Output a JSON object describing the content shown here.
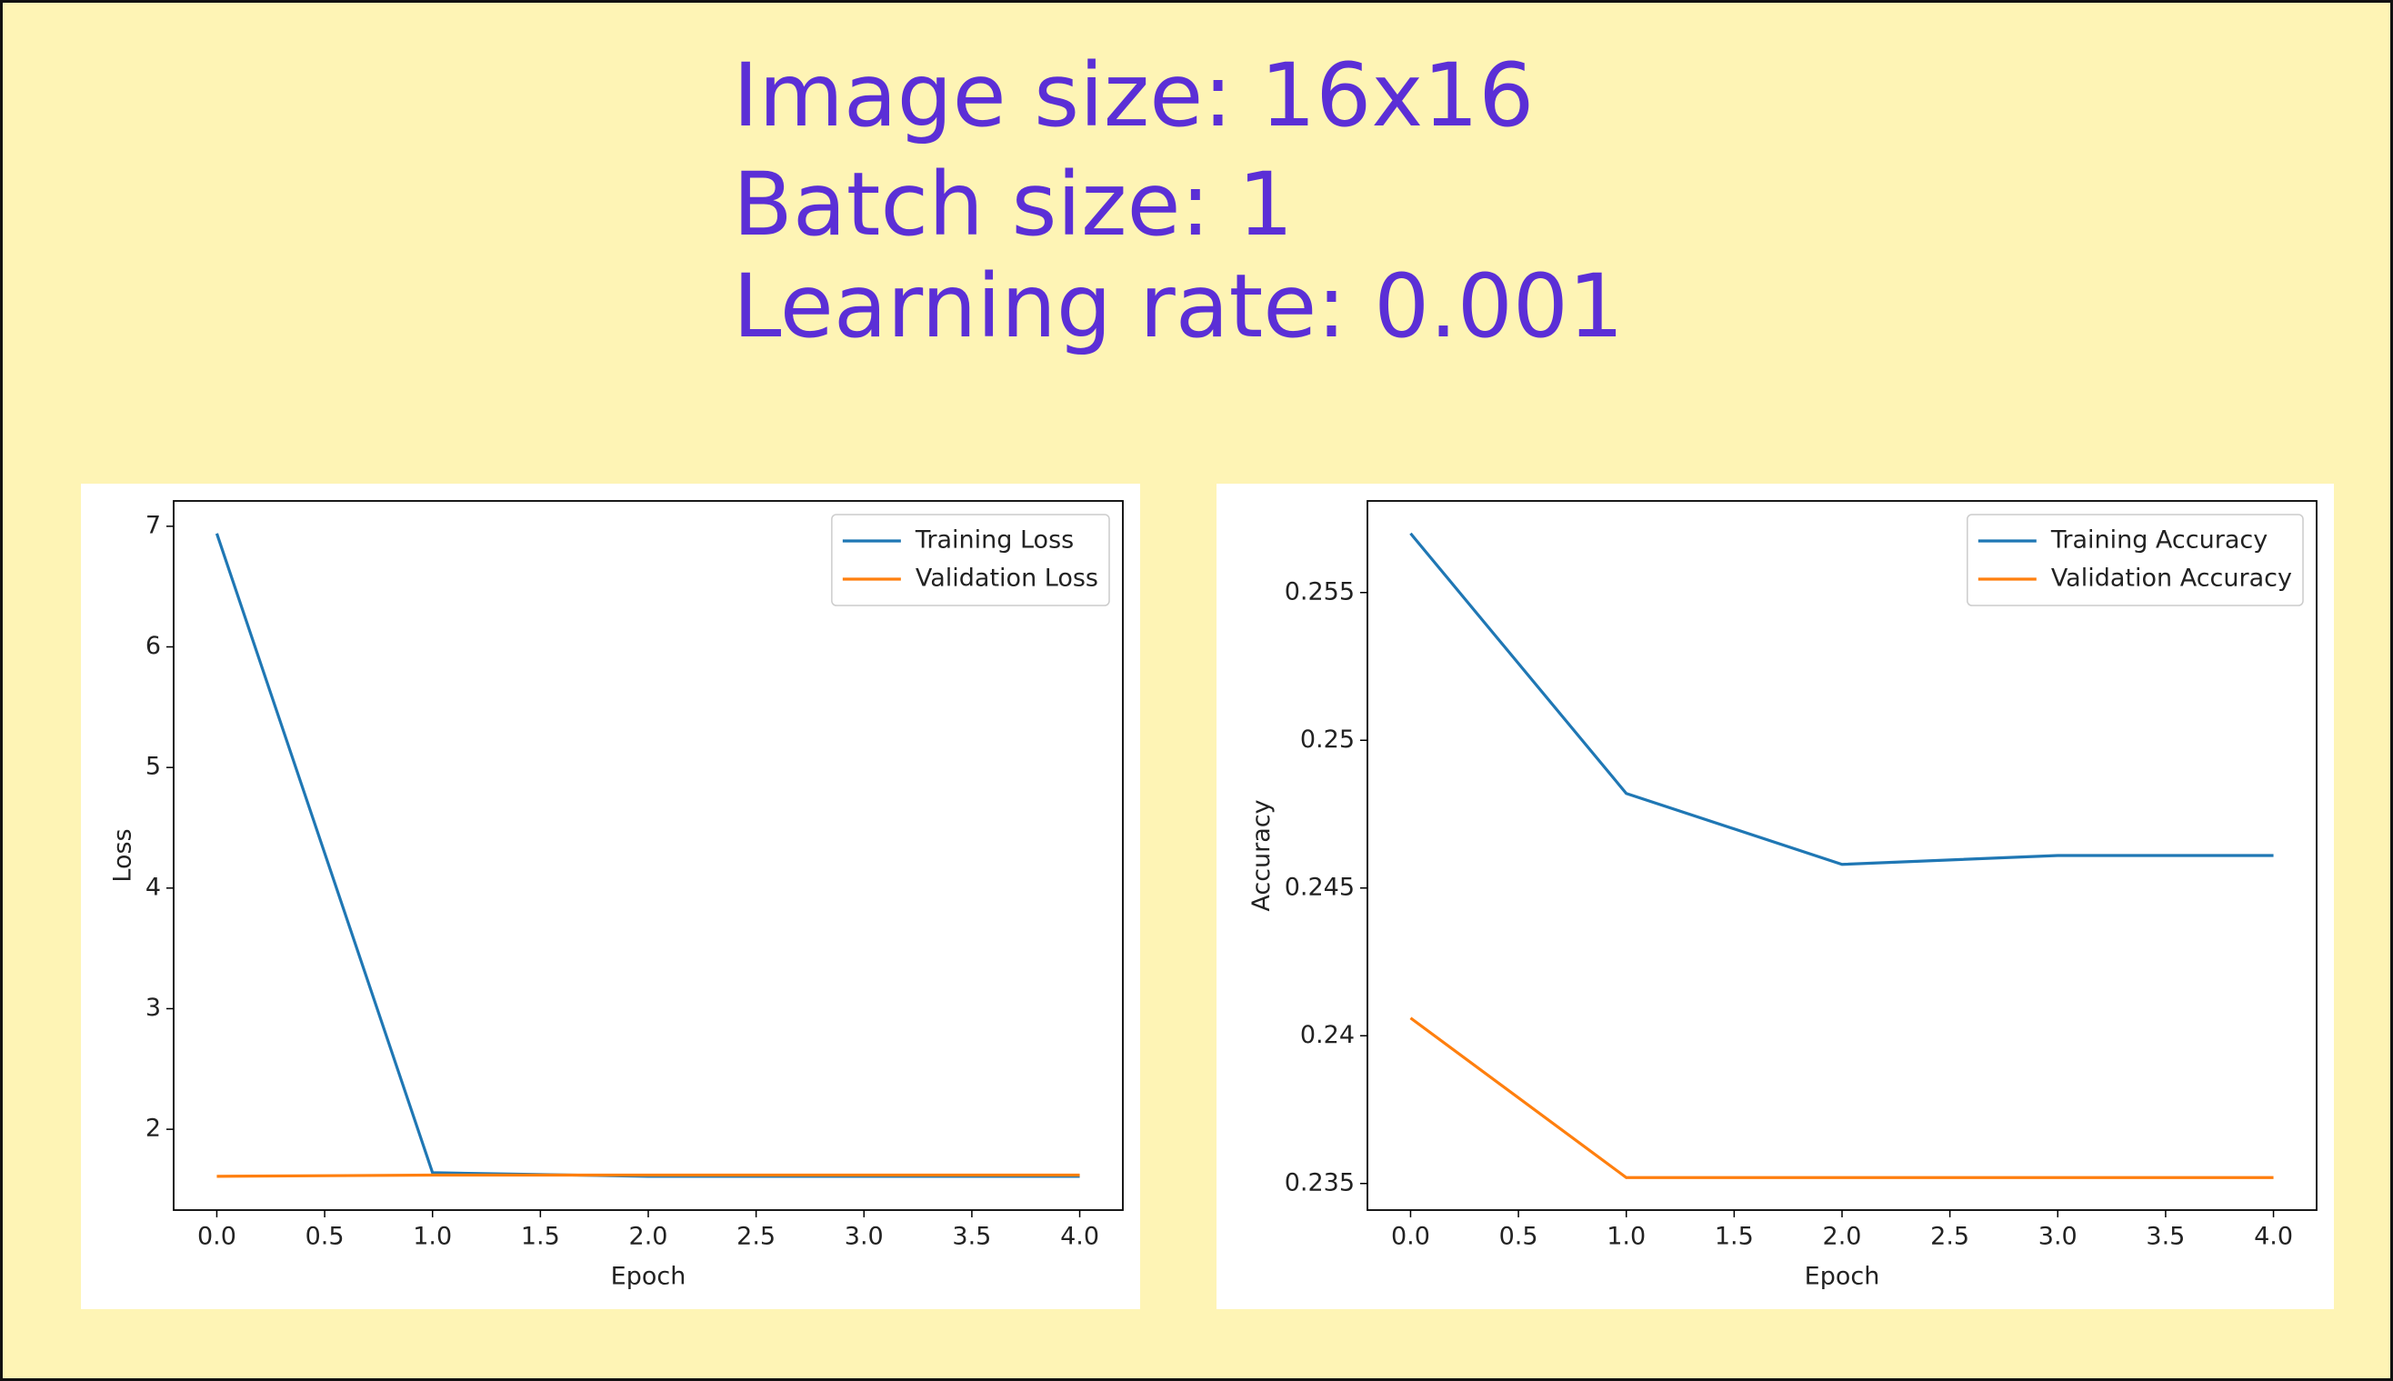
{
  "heading": {
    "lines": [
      "Image size: 16x16",
      "Batch size: 1",
      "Learning rate: 0.001"
    ]
  },
  "chart_data": [
    {
      "type": "line",
      "xlabel": "Epoch",
      "ylabel": "Loss",
      "x": [
        0,
        1,
        2,
        3,
        4
      ],
      "series": [
        {
          "name": "Training Loss",
          "color": "#1f77b4",
          "values": [
            6.94,
            1.64,
            1.61,
            1.61,
            1.61
          ]
        },
        {
          "name": "Validation Loss",
          "color": "#ff7f0e",
          "values": [
            1.61,
            1.62,
            1.62,
            1.62,
            1.62
          ]
        }
      ],
      "xlim": [
        -0.2,
        4.2
      ],
      "ylim": [
        1.33,
        7.21
      ],
      "xticks": [
        {
          "value": 0,
          "label": "0.0"
        },
        0.5,
        {
          "value": 1,
          "label": "1.0"
        },
        1.5,
        {
          "value": 2,
          "label": "2.0"
        },
        2.5,
        {
          "value": 3,
          "label": "3.0"
        },
        3.5,
        {
          "value": 4,
          "label": "4.0"
        }
      ],
      "yticks": [
        2,
        3,
        4,
        5,
        6,
        7
      ],
      "legend": "upper right",
      "grid": false
    },
    {
      "type": "line",
      "xlabel": "Epoch",
      "ylabel": "Accuracy",
      "x": [
        0,
        1,
        2,
        3,
        4
      ],
      "series": [
        {
          "name": "Training Accuracy",
          "color": "#1f77b4",
          "values": [
            0.257,
            0.2482,
            0.2458,
            0.2461,
            0.2461
          ]
        },
        {
          "name": "Validation Accuracy",
          "color": "#ff7f0e",
          "values": [
            0.2406,
            0.2352,
            0.2352,
            0.2352,
            0.2352
          ]
        }
      ],
      "xlim": [
        -0.2,
        4.2
      ],
      "ylim": [
        0.2341,
        0.2581
      ],
      "xticks": [
        {
          "value": 0,
          "label": "0.0"
        },
        0.5,
        {
          "value": 1,
          "label": "1.0"
        },
        1.5,
        {
          "value": 2,
          "label": "2.0"
        },
        2.5,
        {
          "value": 3,
          "label": "3.0"
        },
        3.5,
        {
          "value": 4,
          "label": "4.0"
        }
      ],
      "yticks": [
        0.235,
        0.24,
        0.245,
        0.25,
        0.255
      ],
      "legend": "upper right",
      "grid": false
    }
  ]
}
